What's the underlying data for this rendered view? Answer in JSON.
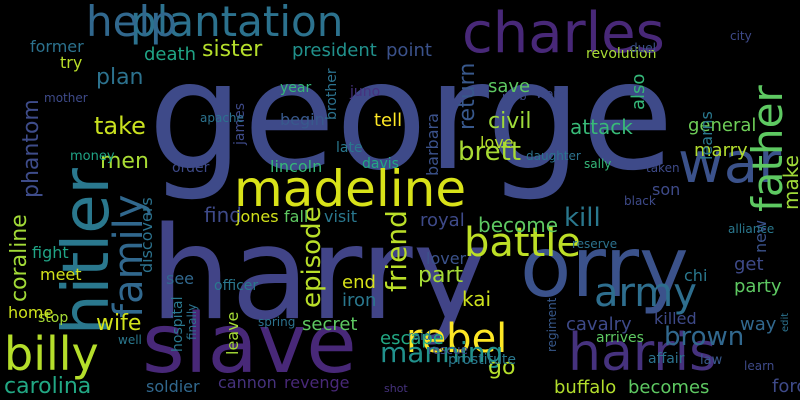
{
  "words": [
    "george",
    "harry",
    "orry",
    "slave",
    "hitler",
    "charles",
    "plantation",
    "help",
    "madeline",
    "war",
    "father",
    "family",
    "harris",
    "billy",
    "battle",
    "rebel",
    "army",
    "coraline",
    "phantom",
    "brown",
    "brett",
    "civil",
    "episode",
    "friend",
    "manning",
    "kill",
    "return",
    "make",
    "carolina",
    "wife",
    "take",
    "men",
    "plan",
    "sister",
    "death",
    "former",
    "try",
    "president",
    "point",
    "save",
    "attack",
    "general",
    "marry",
    "learns",
    "find",
    "jones",
    "fall",
    "visit",
    "lincoln",
    "tell",
    "begin",
    "barbara",
    "love",
    "become",
    "royal",
    "part",
    "kai",
    "lover",
    "go",
    "end",
    "iron",
    "secret",
    "escape",
    "cavalry",
    "killed",
    "way",
    "party",
    "get",
    "chi",
    "son",
    "new",
    "fight",
    "meet",
    "stop",
    "home",
    "see",
    "discovers",
    "officer",
    "leave",
    "soldier",
    "cannon",
    "revenge",
    "buffalo",
    "becomes",
    "force",
    "year",
    "juno",
    "brother",
    "late",
    "davis",
    "order",
    "james",
    "apache",
    "money",
    "mother",
    "also",
    "revolution",
    "work",
    "duel",
    "city",
    "taken",
    "sally",
    "daughter",
    "mob",
    "hospital",
    "spring",
    "well",
    "affair",
    "law",
    "arrives",
    "regiment",
    "learn",
    "edit",
    "alliance",
    "black",
    "reserve",
    "prostitute",
    "rescue",
    "shot",
    "raid",
    "finally"
  ]
}
